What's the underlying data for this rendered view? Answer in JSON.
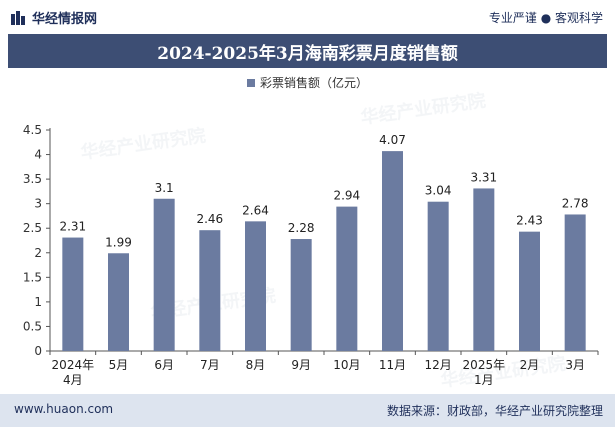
{
  "header": {
    "brand_name": "华经情报网",
    "tagline": "专业严谨 ● 客观科学"
  },
  "footer": {
    "url": "www.huaon.com",
    "source": "数据来源：财政部，华经产业研究院整理"
  },
  "watermark_text": "华经产业研究院",
  "colors": {
    "bar": "#6b7ba0",
    "title_band": "#3d4e74",
    "footer_band": "#dde4ef"
  },
  "chart_data": {
    "type": "bar",
    "title": "2024-2025年3月海南彩票月度销售额",
    "categories": [
      [
        "2024年",
        "4月"
      ],
      [
        "5月"
      ],
      [
        "6月"
      ],
      [
        "7月"
      ],
      [
        "8月"
      ],
      [
        "9月"
      ],
      [
        "10月"
      ],
      [
        "11月"
      ],
      [
        "12月"
      ],
      [
        "2025年",
        "1月"
      ],
      [
        "2月"
      ],
      [
        "3月"
      ]
    ],
    "series": [
      {
        "name": "彩票销售额（亿元）",
        "values": [
          2.31,
          1.99,
          3.1,
          2.46,
          2.64,
          2.28,
          2.94,
          4.07,
          3.04,
          3.31,
          2.43,
          2.78
        ]
      }
    ],
    "value_labels": [
      "2.31",
      "1.99",
      "3.1",
      "2.46",
      "2.64",
      "2.28",
      "2.94",
      "4.07",
      "3.04",
      "3.31",
      "2.43",
      "2.78"
    ],
    "y_ticks": [
      "0",
      "0.5",
      "1",
      "1.5",
      "2",
      "2.5",
      "3",
      "3.5",
      "4",
      "4.5"
    ],
    "ylim": [
      0,
      4.5
    ],
    "grid": false,
    "legend_position": "top-center"
  }
}
